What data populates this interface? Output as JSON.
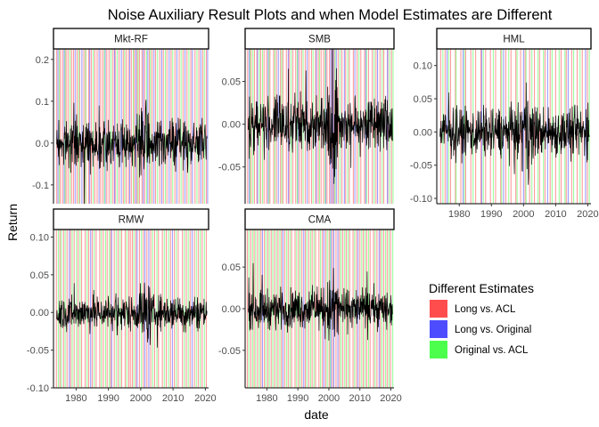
{
  "chart_data": {
    "type": "line",
    "title": "Noise Auxiliary Result Plots and when Model Estimates are Different",
    "xlabel": "date",
    "ylabel": "Return",
    "xlim": [
      1973,
      2021
    ],
    "x_ticks": [
      1980,
      1990,
      2000,
      2010,
      2020
    ],
    "x_tick_labels": [
      "1980",
      "1990",
      "2000",
      "2010",
      "2020"
    ],
    "grid": false,
    "legend": {
      "title": "Different Estimates",
      "placement": "right-bottom",
      "entries": [
        {
          "label": "Long vs. ACL",
          "color": "#ff4d4d"
        },
        {
          "label": "Long vs. Original",
          "color": "#4d4dff"
        },
        {
          "label": "Original vs. ACL",
          "color": "#4dff4d"
        }
      ]
    },
    "panels": [
      {
        "strip": "Mkt-RF",
        "ylim": [
          -0.145,
          0.225
        ],
        "y_ticks": [
          -0.1,
          0.0,
          0.1,
          0.2
        ],
        "y_tick_labels": [
          "-0.1",
          "0.0",
          "0.1",
          "0.2"
        ],
        "amplitude": 0.06,
        "series": [
          {
            "name": "Long vs. ACL",
            "dates": [
              1974.0,
              1975.1,
              1975.8,
              1976.9,
              1977.5,
              1978.6,
              1979.2,
              1980.3,
              1981.1,
              1982.4,
              1983.0,
              1983.9,
              1984.7,
              1985.8,
              1986.5,
              1987.6,
              1988.3,
              1989.5,
              1990.2,
              1991.4,
              1992.1,
              1993.3,
              1994.6,
              1995.5,
              1996.2,
              1997.1,
              1998.0,
              1998.9,
              1999.6,
              2000.4,
              2001.2,
              2002.7,
              2003.5,
              2004.6,
              2005.9,
              2007.0,
              2008.1,
              2009.4,
              2010.6,
              2011.9,
              2013.1,
              2014.3,
              2015.5,
              2016.8,
              2018.0,
              2019.2,
              2020.3
            ]
          },
          {
            "name": "Long vs. Original",
            "dates": [
              1974.4,
              1976.3,
              1979.7,
              1981.8,
              1984.2,
              1987.1,
              1989.0,
              1991.9,
              1994.0,
              1996.6,
              1998.5,
              2000.8,
              2002.2,
              2004.1,
              2006.5,
              2008.8,
              2011.2,
              2013.7,
              2016.0,
              2018.6,
              2020.7
            ]
          },
          {
            "name": "Original vs. ACL",
            "dates": [
              1974.8,
              1976.6,
              1978.1,
              1980.8,
              1982.9,
              1985.3,
              1988.8,
              1990.8,
              1992.7,
              1995.0,
              1997.7,
              1999.2,
              2001.8,
              2003.0,
              2005.2,
              2007.6,
              2009.9,
              2012.5,
              2014.9,
              2017.4,
              2019.7
            ]
          }
        ]
      },
      {
        "strip": "SMB",
        "ylim": [
          -0.093,
          0.088
        ],
        "y_ticks": [
          -0.05,
          0.0,
          0.05
        ],
        "y_tick_labels": [
          "-0.05",
          "0.00",
          "0.05"
        ],
        "amplitude": 0.035,
        "series": [
          {
            "name": "Long vs. ACL",
            "dates": [
              1973.8,
              1974.9,
              1976.0,
              1976.8,
              1978.0,
              1979.1,
              1979.9,
              1981.0,
              1982.2,
              1983.1,
              1984.4,
              1985.2,
              1986.3,
              1987.2,
              1988.4,
              1989.3,
              1990.5,
              1991.2,
              1992.4,
              1993.6,
              1994.4,
              1995.7,
              1996.6,
              1997.5,
              1998.3,
              1999.4,
              2000.2,
              2001.0,
              2001.7,
              2003.0,
              2004.2,
              2005.4,
              2006.6,
              2007.9,
              2009.1,
              2010.3,
              2011.5,
              2012.8,
              2014.0,
              2015.2,
              2016.5,
              2017.7,
              2019.0,
              2020.2
            ]
          },
          {
            "name": "Long vs. Original",
            "dates": [
              1974.3,
              1977.0,
              1980.4,
              1983.7,
              1986.9,
              1990.0,
              1993.0,
              1996.0,
              1999.0,
              2000.6,
              2001.4,
              2002.4,
              2005.0,
              2008.4,
              2011.9,
              2015.7,
              2018.9
            ]
          },
          {
            "name": "Original vs. ACL",
            "dates": [
              1974.6,
              1975.5,
              1977.6,
              1978.6,
              1980.7,
              1982.6,
              1984.8,
              1987.8,
              1989.8,
              1991.7,
              1994.9,
              1997.0,
              1998.8,
              2002.0,
              2003.6,
              2006.1,
              2009.7,
              2012.2,
              2014.6,
              2017.2,
              2019.6,
              2020.7
            ]
          }
        ]
      },
      {
        "strip": "HML",
        "ylim": [
          -0.108,
          0.125
        ],
        "y_ticks": [
          -0.1,
          -0.05,
          0.0,
          0.05,
          0.1
        ],
        "y_tick_labels": [
          "-0.10",
          "-0.05",
          "0.00",
          "0.05",
          "0.10"
        ],
        "amplitude": 0.04,
        "series": [
          {
            "name": "Long vs. ACL",
            "dates": [
              1974.2,
              1975.6,
              1977.3,
              1978.8,
              1980.5,
              1982.0,
              1983.6,
              1985.1,
              1986.7,
              1988.2,
              1989.7,
              1991.3,
              1992.9,
              1994.5,
              1996.1,
              1997.6,
              1999.1,
              2000.5,
              2001.9,
              2003.4,
              2005.0,
              2006.7,
              2008.3,
              2010.0,
              2011.7,
              2013.3,
              2015.0,
              2016.7,
              2018.3,
              2019.9
            ]
          },
          {
            "name": "Long vs. Original",
            "dates": [
              1976.2,
              1981.2,
              1987.0,
              1993.8,
              2000.0,
              2007.5,
              2013.9,
              2019.3
            ]
          },
          {
            "name": "Original vs. ACL",
            "dates": [
              1974.9,
              1976.7,
              1979.0,
              1981.6,
              1984.3,
              1987.5,
              1990.6,
              1993.2,
              1995.4,
              1998.0,
              2000.8,
              2002.6,
              2004.5,
              2006.2,
              2008.9,
              2011.1,
              2012.9,
              2015.6,
              2017.6,
              2020.5
            ]
          }
        ]
      },
      {
        "strip": "RMW",
        "ylim": [
          -0.1,
          0.11
        ],
        "y_ticks": [
          -0.1,
          -0.05,
          0.0,
          0.05,
          0.1
        ],
        "y_tick_labels": [
          "-0.10",
          "-0.05",
          "0.00",
          "0.05",
          "0.10"
        ],
        "amplitude": 0.025,
        "series": [
          {
            "name": "Long vs. ACL",
            "dates": [
              1973.9,
              1975.0,
              1976.1,
              1977.2,
              1978.3,
              1979.4,
              1980.6,
              1981.7,
              1982.8,
              1983.9,
              1985.0,
              1986.2,
              1987.3,
              1988.4,
              1989.6,
              1990.7,
              1991.8,
              1993.0,
              1994.1,
              1995.2,
              1996.3,
              1996.8,
              1997.4,
              1998.5,
              1999.6,
              2000.8,
              2001.9,
              2003.1,
              2004.3,
              2005.5,
              2006.7,
              2007.9,
              2009.2,
              2010.4,
              2011.6,
              2012.9,
              2014.1,
              2015.3,
              2016.6,
              2017.8,
              2019.0,
              2020.3
            ]
          },
          {
            "name": "Long vs. Original",
            "dates": [
              1977.9,
              1984.5,
              1991.0,
              1998.9,
              2001.3,
              2002.5,
              2009.8,
              2015.9
            ]
          },
          {
            "name": "Original vs. ACL",
            "dates": [
              1974.5,
              1975.4,
              1976.6,
              1978.8,
              1980.1,
              1981.2,
              1983.4,
              1985.6,
              1987.8,
              1989.1,
              1990.3,
              1992.4,
              1993.6,
              1995.7,
              1997.9,
              2000.2,
              2003.7,
              2005.0,
              2007.3,
              2008.6,
              2011.0,
              2013.5,
              2014.7,
              2017.2,
              2018.4,
              2019.7
            ]
          }
        ]
      },
      {
        "strip": "CMA",
        "ylim": [
          -0.095,
          0.095
        ],
        "y_ticks": [
          -0.05,
          0.0,
          0.05
        ],
        "y_tick_labels": [
          "-0.05",
          "0.00",
          "0.05"
        ],
        "amplitude": 0.025,
        "series": [
          {
            "name": "Long vs. ACL",
            "dates": [
              1973.7,
              1974.8,
              1975.9,
              1977.0,
              1978.1,
              1979.2,
              1980.3,
              1981.4,
              1982.5,
              1983.6,
              1984.7,
              1985.8,
              1986.9,
              1988.0,
              1989.1,
              1990.2,
              1991.3,
              1992.4,
              1993.5,
              1994.6,
              1995.7,
              1996.8,
              1997.9,
              1999.0,
              2000.1,
              2001.2,
              2002.3,
              2003.4,
              2004.5,
              2005.6,
              2006.7,
              2007.8,
              2008.9,
              2010.0,
              2011.1,
              2012.2,
              2013.3,
              2014.4,
              2015.5,
              2016.6,
              2017.7,
              2018.8,
              2019.9
            ]
          },
          {
            "name": "Long vs. Original",
            "dates": [
              1978.6,
              1985.2,
              1991.9,
              1998.4,
              2000.7,
              2001.6,
              2002.9,
              2009.4,
              2016.2
            ]
          },
          {
            "name": "Original vs. ACL",
            "dates": [
              1974.2,
              1975.4,
              1976.4,
              1977.6,
              1979.7,
              1980.8,
              1981.9,
              1983.1,
              1984.2,
              1986.4,
              1987.5,
              1989.6,
              1990.7,
              1992.9,
              1994.1,
              1995.2,
              1997.3,
              1999.5,
              2000.4,
              2003.9,
              2005.1,
              2006.2,
              2008.3,
              2010.6,
              2011.7,
              2012.8,
              2014.9,
              2017.1,
              2018.3,
              2019.4,
              2020.6
            ]
          }
        ]
      }
    ]
  }
}
